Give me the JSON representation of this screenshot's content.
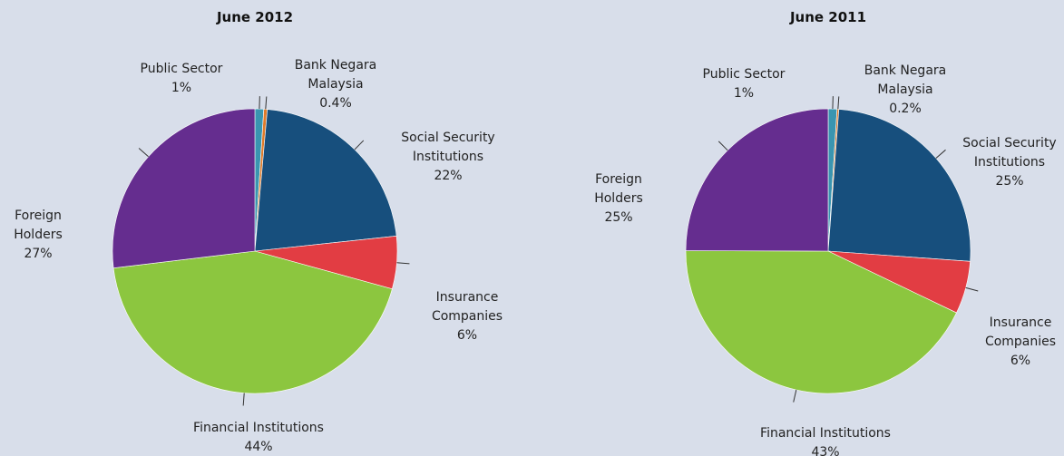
{
  "chart_data": [
    {
      "type": "pie",
      "title": "June 2012",
      "categories": [
        "Public Sector",
        "Bank Negara Malaysia",
        "Social Security Institutions",
        "Insurance Companies",
        "Financial Institutions",
        "Foreign Holders"
      ],
      "values": [
        1,
        0.4,
        22,
        6,
        44,
        27
      ],
      "value_labels": [
        "1%",
        "0.4%",
        "22%",
        "6%",
        "44%",
        "27%"
      ],
      "colors": [
        "#3a95b0",
        "#e07b2a",
        "#174f7d",
        "#e23d43",
        "#8cc63f",
        "#652d8f"
      ]
    },
    {
      "type": "pie",
      "title": "June 2011",
      "categories": [
        "Public Sector",
        "Bank Negara Malaysia",
        "Social Security Institutions",
        "Insurance Companies",
        "Financial Institutions",
        "Foreign Holders"
      ],
      "values": [
        1,
        0.2,
        25,
        6,
        43,
        25
      ],
      "value_labels": [
        "1%",
        "0.2%",
        "25%",
        "6%",
        "43%",
        "25%"
      ],
      "colors": [
        "#3a95b0",
        "#e07b2a",
        "#174f7d",
        "#e23d43",
        "#8cc63f",
        "#652d8f"
      ]
    }
  ]
}
